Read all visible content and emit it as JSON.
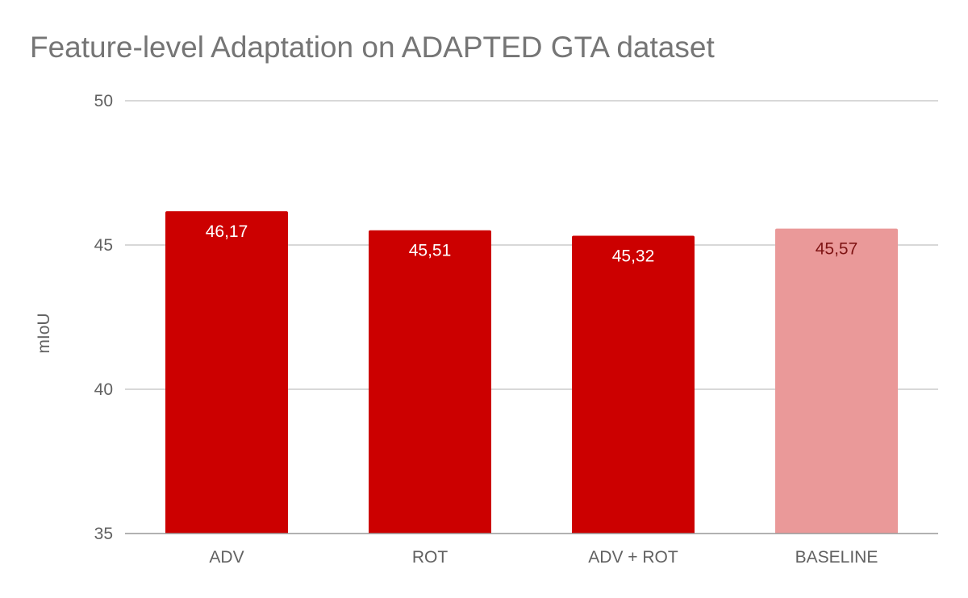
{
  "chart_data": {
    "type": "bar",
    "title": "Feature-level Adaptation on ADAPTED GTA dataset",
    "xlabel": "",
    "ylabel": "mIoU",
    "ylim": [
      35,
      50
    ],
    "yticks": [
      {
        "value": 35,
        "label": "35"
      },
      {
        "value": 40,
        "label": "40"
      },
      {
        "value": 45,
        "label": "45"
      },
      {
        "value": 50,
        "label": "50"
      }
    ],
    "grid": true,
    "legend": "none",
    "categories": [
      "ADV",
      "ROT",
      "ADV + ROT",
      "BASELINE"
    ],
    "values": [
      46.17,
      45.51,
      45.32,
      45.57
    ],
    "data_labels": [
      "46,17",
      "45,51",
      "45,32",
      "45,57"
    ],
    "bar_colors": [
      "#cc0000",
      "#cc0000",
      "#cc0000",
      "#ea9999"
    ],
    "label_colors": [
      "#ffffff",
      "#ffffff",
      "#ffffff",
      "#7f1414"
    ],
    "gridline_color": "#cccccc",
    "baseline_color": "#999999",
    "text_color": "#616161",
    "title_color": "#757575"
  }
}
